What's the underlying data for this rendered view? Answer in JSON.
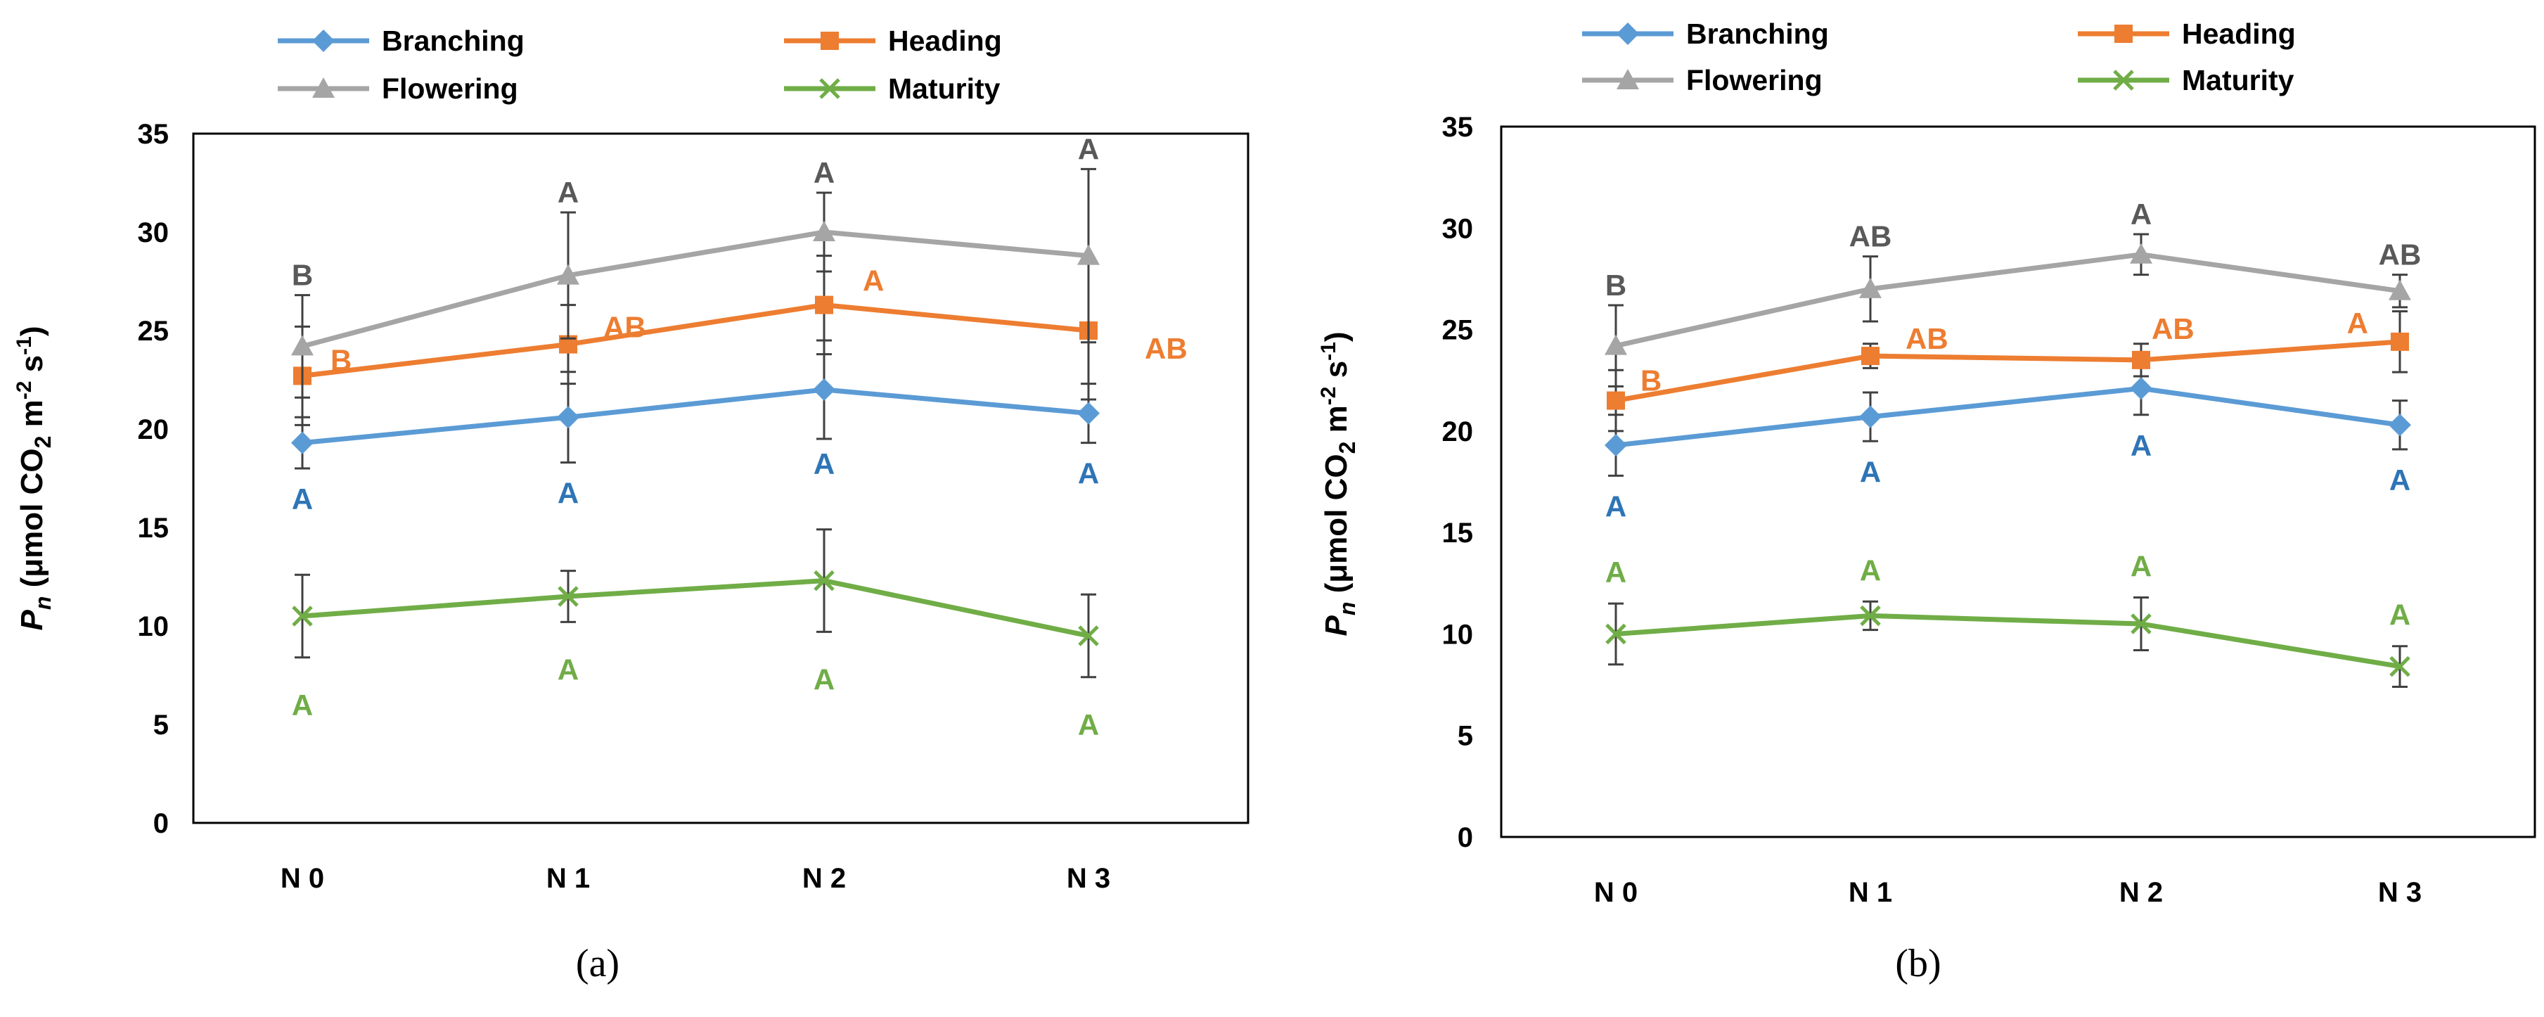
{
  "colors": {
    "Branching": "#5B9BD5",
    "Heading": "#ED7D31",
    "Flowering": "#A5A5A5",
    "Maturity": "#70AD47",
    "error_bar": "#404040",
    "sig_Branching": "#2E75B6",
    "sig_Heading": "#ED7D31",
    "sig_Flowering": "#595959",
    "sig_Maturity": "#70AD47"
  },
  "legend": {
    "entries": [
      {
        "name": "Branching",
        "marker": "diamond"
      },
      {
        "name": "Heading",
        "marker": "square"
      },
      {
        "name": "Flowering",
        "marker": "triangle"
      },
      {
        "name": "Maturity",
        "marker": "cross"
      }
    ]
  },
  "chart_data": [
    {
      "type": "line",
      "caption": "(a)",
      "ylabel": {
        "base": "P",
        "sub1": "n",
        "mid": " (μmol CO",
        "sub2": "2",
        "mid2": " m",
        "sup1": "-2",
        "mid3": " s",
        "sup2": "-1",
        "end": ")"
      },
      "categories": [
        "N 0",
        "N 1",
        "N 2",
        "N 3"
      ],
      "ylim": [
        0,
        35
      ],
      "yticks": [
        "0",
        "5",
        "10",
        "15",
        "20",
        "25",
        "30",
        "35"
      ],
      "series": [
        {
          "name": "Branching",
          "marker": "diamond",
          "values": [
            19.3,
            20.6,
            22.0,
            20.8
          ],
          "errors": [
            1.3,
            2.3,
            2.5,
            1.5
          ],
          "letters": [
            "A",
            "A",
            "A",
            "A"
          ]
        },
        {
          "name": "Heading",
          "marker": "square",
          "values": [
            22.7,
            24.3,
            26.3,
            25.0
          ],
          "errors": [
            2.5,
            2.0,
            2.5,
            3.5
          ],
          "letters": [
            "B",
            "AB",
            "A",
            "AB"
          ]
        },
        {
          "name": "Flowering",
          "marker": "triangle",
          "values": [
            24.2,
            27.8,
            30.0,
            28.8
          ],
          "errors": [
            2.6,
            3.2,
            2.0,
            4.4
          ],
          "letters": [
            "B",
            "A",
            "A",
            "A"
          ]
        },
        {
          "name": "Maturity",
          "marker": "cross",
          "values": [
            10.5,
            11.5,
            12.3,
            9.5
          ],
          "errors": [
            2.1,
            1.3,
            2.6,
            2.1
          ],
          "letters": [
            "A",
            "A",
            "A",
            "A"
          ]
        }
      ]
    },
    {
      "type": "line",
      "caption": "(b)",
      "ylabel": {
        "base": "P",
        "sub1": "n",
        "mid": " (μmol CO",
        "sub2": "2",
        "mid2": " m",
        "sup1": "-2",
        "mid3": " s",
        "sup2": "-1",
        "end": ")"
      },
      "categories": [
        "N 0",
        "N 1",
        "N 2",
        "N 3"
      ],
      "ylim": [
        0,
        35
      ],
      "yticks": [
        "0",
        "5",
        "10",
        "15",
        "20",
        "25",
        "30",
        "35"
      ],
      "series": [
        {
          "name": "Branching",
          "marker": "diamond",
          "values": [
            19.3,
            20.7,
            22.1,
            20.3
          ],
          "errors": [
            1.5,
            1.2,
            1.3,
            1.2
          ],
          "letters": [
            "A",
            "A",
            "A",
            "A"
          ]
        },
        {
          "name": "Heading",
          "marker": "square",
          "values": [
            21.5,
            23.7,
            23.5,
            24.4
          ],
          "errors": [
            1.5,
            0.6,
            0.8,
            1.5
          ],
          "letters": [
            "B",
            "AB",
            "AB",
            "A"
          ]
        },
        {
          "name": "Flowering",
          "marker": "triangle",
          "values": [
            24.2,
            27.0,
            28.7,
            26.9
          ],
          "errors": [
            2.0,
            1.6,
            1.0,
            0.8
          ],
          "letters": [
            "B",
            "AB",
            "A",
            "AB"
          ]
        },
        {
          "name": "Maturity",
          "marker": "cross",
          "values": [
            10.0,
            10.9,
            10.5,
            8.4
          ],
          "errors": [
            1.5,
            0.7,
            1.3,
            1.0
          ],
          "letters": [
            "A",
            "A",
            "A",
            "A"
          ]
        }
      ]
    }
  ]
}
